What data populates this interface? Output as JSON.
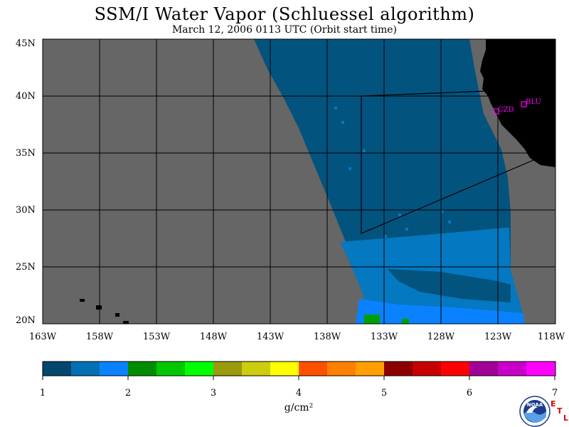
{
  "title": "SSM/I Water Vapor (Schluessel algorithm)",
  "subtitle": "March 12, 2006   0113 UTC  (Orbit start time)",
  "map": {
    "lat_labels": [
      "45N",
      "40N",
      "35N",
      "30N",
      "25N",
      "20N"
    ],
    "lon_labels": [
      "163W",
      "158W",
      "153W",
      "148W",
      "143W",
      "138W",
      "133W",
      "128W",
      "123W",
      "118W"
    ],
    "station_labels": [
      "CZD",
      "BLU"
    ],
    "colors": {
      "land": "#000000",
      "no_data": "#666666",
      "grid": "#000000",
      "station": "#ff00ff",
      "swath_dark": "#03537f",
      "swath_mid": "#0478c0",
      "swath_light": "#0a82ff",
      "swath_green": "#00a000"
    }
  },
  "colorbar": {
    "tick_labels": [
      "1",
      "2",
      "3",
      "4",
      "5",
      "6",
      "7"
    ],
    "units_label": "g/cm²",
    "colors": [
      "#03466e",
      "#0470b4",
      "#0a82ff",
      "#008c00",
      "#00c800",
      "#00ff00",
      "#9a9a0f",
      "#cdcd0f",
      "#ffff00",
      "#ff5000",
      "#ff8000",
      "#ffa000",
      "#8c0000",
      "#c80000",
      "#ff0000",
      "#a00096",
      "#c800c8",
      "#ff00ff"
    ]
  },
  "logos": {
    "noaa_text": "NOAA",
    "etl_letters": [
      "E",
      "T",
      "L"
    ]
  }
}
